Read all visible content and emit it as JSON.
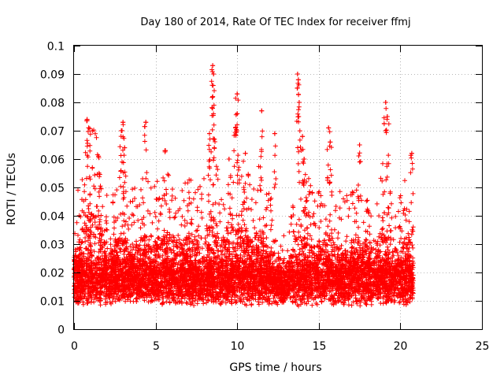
{
  "chart_data": {
    "type": "scatter",
    "title": "Day 180 of 2014, Rate Of TEC Index for receiver ffmj",
    "xlabel": "GPS time / hours",
    "ylabel": "ROTI / TECUs",
    "xlim": [
      0,
      25
    ],
    "ylim": [
      0,
      0.1
    ],
    "xticks": [
      0,
      5,
      10,
      15,
      20,
      25
    ],
    "xtick_labels": [
      "0",
      "5",
      "10",
      "15",
      "20",
      "25"
    ],
    "yticks": [
      0,
      0.01,
      0.02,
      0.03,
      0.04,
      0.05,
      0.06,
      0.07,
      0.08,
      0.09,
      0.1
    ],
    "ytick_labels": [
      "0",
      "0.01",
      "0.02",
      "0.03",
      "0.04",
      "0.05",
      "0.06",
      "0.07",
      "0.08",
      "0.09",
      "0.1"
    ],
    "grid": true,
    "marker": "+",
    "marker_color": "#ff0000",
    "data_range_hours": [
      0,
      20.8
    ],
    "series": [
      {
        "name": "ROTI",
        "notable_points": [
          {
            "x": 8.5,
            "y": 0.093
          },
          {
            "x": 8.55,
            "y": 0.09
          },
          {
            "x": 13.7,
            "y": 0.09
          },
          {
            "x": 13.75,
            "y": 0.088
          },
          {
            "x": 10.0,
            "y": 0.083
          },
          {
            "x": 8.5,
            "y": 0.082
          },
          {
            "x": 19.1,
            "y": 0.08
          },
          {
            "x": 13.8,
            "y": 0.08
          },
          {
            "x": 11.5,
            "y": 0.077
          },
          {
            "x": 19.2,
            "y": 0.075
          },
          {
            "x": 10.0,
            "y": 0.076
          },
          {
            "x": 0.8,
            "y": 0.074
          },
          {
            "x": 4.4,
            "y": 0.073
          },
          {
            "x": 3.0,
            "y": 0.073
          },
          {
            "x": 0.9,
            "y": 0.071
          },
          {
            "x": 15.6,
            "y": 0.071
          },
          {
            "x": 9.9,
            "y": 0.071
          },
          {
            "x": 2.9,
            "y": 0.07
          },
          {
            "x": 8.3,
            "y": 0.069
          },
          {
            "x": 12.3,
            "y": 0.069
          },
          {
            "x": 14.0,
            "y": 0.068
          },
          {
            "x": 8.6,
            "y": 0.067
          },
          {
            "x": 15.7,
            "y": 0.066
          },
          {
            "x": 17.5,
            "y": 0.065
          },
          {
            "x": 3.1,
            "y": 0.064
          },
          {
            "x": 5.6,
            "y": 0.063
          },
          {
            "x": 10.5,
            "y": 0.062
          },
          {
            "x": 20.7,
            "y": 0.062
          },
          {
            "x": 1.5,
            "y": 0.061
          },
          {
            "x": 9.5,
            "y": 0.06
          },
          {
            "x": 14.1,
            "y": 0.06
          }
        ]
      }
    ]
  }
}
